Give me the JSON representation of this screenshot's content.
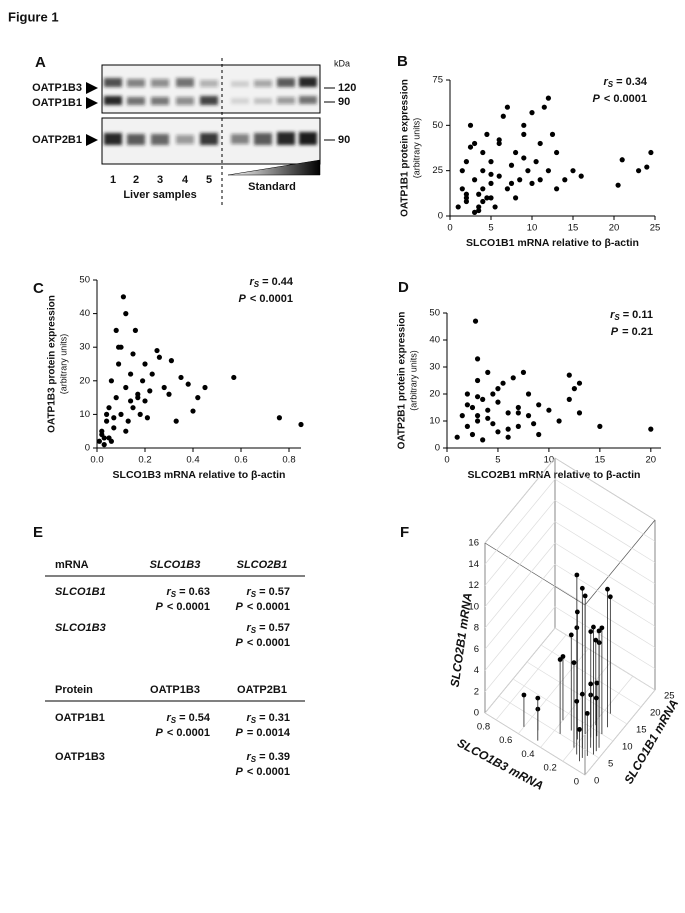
{
  "title": "Figure 1",
  "panel_labels": [
    "A",
    "B",
    "C",
    "D",
    "E",
    "F"
  ],
  "blot": {
    "kda_label": "kDa",
    "markers": [
      "120",
      "90",
      "90"
    ],
    "proteins": [
      "OATP1B3",
      "OATP1B1",
      "OATP2B1"
    ],
    "lanes": [
      "1",
      "2",
      "3",
      "4",
      "5"
    ],
    "groups": [
      "Liver samples",
      "Standard"
    ]
  },
  "chart_data": [
    {
      "type": "scatter",
      "ylabel": "OATP1B1 protein expression",
      "ylabel_sub": "(arbitrary units)",
      "xlabel": "SLCO1B1 mRNA relative to β-actin",
      "color": "#000000",
      "stat": {
        "r": "r",
        "sub": "S",
        "r_value": "= 0.34",
        "p": "P",
        "p_value": "<  0.0001"
      },
      "xlim": [
        0,
        25
      ],
      "xticks": [
        0,
        5,
        10,
        15,
        20,
        25
      ],
      "ylim": [
        0,
        75
      ],
      "yticks": [
        0,
        25,
        50,
        75
      ],
      "x": [
        1,
        1.5,
        2,
        2,
        2.5,
        3,
        3,
        3.5,
        3.5,
        4,
        4,
        4.5,
        4.5,
        5,
        5,
        5.5,
        6,
        6,
        6.5,
        7,
        7,
        7.5,
        8,
        8,
        8.5,
        9,
        9,
        9.5,
        10,
        10,
        10.5,
        11,
        11,
        12,
        12,
        12.5,
        13,
        13,
        14,
        15,
        16,
        20.5,
        21,
        23,
        24,
        24.5,
        2.5,
        3,
        4,
        5,
        6,
        1.5,
        2,
        3.5,
        7.5,
        9,
        11.5,
        5,
        4,
        2
      ],
      "values": [
        5,
        15,
        8,
        30,
        50,
        20,
        40,
        3,
        12,
        25,
        35,
        10,
        45,
        18,
        30,
        5,
        40,
        22,
        55,
        15,
        60,
        28,
        10,
        35,
        20,
        50,
        45,
        25,
        57,
        18,
        30,
        20,
        40,
        65,
        25,
        45,
        15,
        35,
        20,
        25,
        22,
        17,
        31,
        25,
        27,
        35,
        38,
        2,
        15,
        10,
        42,
        25,
        10,
        5,
        18,
        32,
        60,
        23,
        8,
        12
      ]
    },
    {
      "type": "scatter",
      "ylabel": "OATP1B3 protein expression",
      "ylabel_sub": "(arbitrary units)",
      "xlabel": "SLCO1B3 mRNA relative to β-actin",
      "color": "#000000",
      "stat": {
        "r": "r",
        "sub": "S",
        "r_value": "= 0.44",
        "p": "P",
        "p_value": "<  0.0001"
      },
      "xlim": [
        0,
        0.85
      ],
      "xticks": [
        {
          "value": 0,
          "label": "0.0"
        },
        0.2,
        0.4,
        0.6,
        0.8
      ],
      "ylim": [
        0,
        50
      ],
      "yticks": [
        0,
        10,
        20,
        30,
        40,
        50
      ],
      "x": [
        0.01,
        0.02,
        0.03,
        0.04,
        0.05,
        0.05,
        0.06,
        0.07,
        0.08,
        0.08,
        0.09,
        0.1,
        0.1,
        0.11,
        0.12,
        0.12,
        0.13,
        0.14,
        0.15,
        0.15,
        0.16,
        0.17,
        0.18,
        0.19,
        0.2,
        0.2,
        0.21,
        0.22,
        0.23,
        0.25,
        0.26,
        0.28,
        0.3,
        0.31,
        0.33,
        0.35,
        0.38,
        0.4,
        0.42,
        0.45,
        0.57,
        0.76,
        0.85,
        0.02,
        0.04,
        0.06,
        0.09,
        0.12,
        0.14,
        0.17,
        0.07,
        0.03
      ],
      "values": [
        2,
        5,
        1,
        8,
        3,
        12,
        20,
        6,
        35,
        15,
        25,
        10,
        30,
        45,
        18,
        5,
        8,
        22,
        12,
        28,
        35,
        15,
        10,
        20,
        14,
        25,
        9,
        17,
        22,
        29,
        27,
        18,
        16,
        26,
        8,
        21,
        19,
        11,
        15,
        18,
        21,
        9,
        7,
        4,
        10,
        2,
        30,
        40,
        14,
        16,
        9,
        3
      ]
    },
    {
      "type": "scatter",
      "ylabel": "OATP2B1 protein expression",
      "ylabel_sub": "(arbitrary units)",
      "xlabel": "SLCO2B1 mRNA relative to β-actin",
      "color": "#000000",
      "stat": {
        "r": "r",
        "sub": "S",
        "r_value": "= 0.11",
        "p": "P",
        "p_value": "=  0.21"
      },
      "xlim": [
        0,
        21
      ],
      "xticks": [
        0,
        5,
        10,
        15,
        20
      ],
      "ylim": [
        0,
        50
      ],
      "yticks": [
        0,
        10,
        20,
        30,
        40,
        50
      ],
      "x": [
        1,
        1.5,
        2,
        2,
        2.5,
        2.5,
        3,
        3,
        3,
        3.5,
        3.5,
        4,
        4,
        4.5,
        4.5,
        5,
        5,
        5.5,
        6,
        6,
        6.5,
        7,
        7,
        7.5,
        8,
        8,
        8.5,
        9,
        9,
        10,
        11,
        12,
        12,
        12.5,
        13,
        13,
        15,
        20,
        2,
        3,
        4,
        5,
        6,
        7,
        3,
        2.8
      ],
      "values": [
        4,
        12,
        20,
        8,
        15,
        5,
        25,
        10,
        33,
        18,
        3,
        14,
        28,
        9,
        20,
        17,
        6,
        24,
        13,
        4,
        26,
        15,
        8,
        28,
        12,
        20,
        9,
        16,
        5,
        14,
        10,
        27,
        18,
        22,
        13,
        24,
        8,
        7,
        16,
        19,
        11,
        22,
        7,
        13,
        12,
        47
      ]
    },
    {
      "type": "scatter3d",
      "xlabel": "SLCO1B1 mRNA",
      "ylabel": "SLCO1B3 mRNA",
      "zlabel": "SLCO2B1 mRNA",
      "color": "#000000",
      "xlim": [
        0,
        25
      ],
      "xticks": [
        0,
        5,
        10,
        15,
        20,
        25
      ],
      "ylim": [
        0,
        0.9
      ],
      "yticks": [
        0,
        0.2,
        0.4,
        0.6,
        0.8
      ],
      "zlim": [
        0,
        16
      ],
      "zticks": [
        0,
        2,
        4,
        6,
        8,
        10,
        12,
        14,
        16
      ],
      "x": [
        2,
        3,
        4,
        5,
        6,
        7,
        8,
        9,
        10,
        12,
        3,
        5,
        7,
        9,
        11,
        4,
        6,
        8,
        2,
        10,
        13,
        5,
        7,
        3,
        6,
        1,
        15,
        8
      ],
      "y": [
        0.1,
        0.15,
        0.2,
        0.05,
        0.1,
        0.25,
        0.15,
        0.3,
        0.2,
        0.1,
        0.5,
        0.35,
        0.05,
        0.12,
        0.18,
        0.08,
        0.22,
        0.4,
        0.6,
        0.1,
        0.2,
        0.15,
        0.3,
        0.1,
        0.05,
        0.45,
        0.15,
        0.2
      ],
      "values": [
        3,
        5,
        8,
        12,
        6,
        10,
        4,
        14,
        9,
        13,
        2,
        7,
        11,
        5,
        8,
        4,
        12,
        6,
        3,
        10,
        7,
        15,
        9,
        6,
        5,
        4,
        11,
        13
      ]
    }
  ],
  "table": {
    "r": "r",
    "sub": "S",
    "p": "P",
    "sections": [
      {
        "header": [
          "mRNA",
          "SLCO1B3",
          "SLCO2B1"
        ],
        "rows": [
          [
            "SLCO1B1",
            {
              "r_value": "= 0.63",
              "p_value": "< 0.0001"
            },
            {
              "r_value": "= 0.57",
              "p_value": "< 0.0001"
            }
          ],
          [
            "SLCO1B3",
            null,
            {
              "r_value": "= 0.57",
              "p_value": "< 0.0001"
            }
          ]
        ]
      },
      {
        "header": [
          "Protein",
          "OATP1B3",
          "OATP2B1"
        ],
        "rows": [
          [
            "OATP1B1",
            {
              "r_value": "= 0.54",
              "p_value": "< 0.0001"
            },
            {
              "r_value": "= 0.31",
              "p_value": "= 0.0014"
            }
          ],
          [
            "OATP1B3",
            null,
            {
              "r_value": "= 0.39",
              "p_value": "< 0.0001"
            }
          ]
        ]
      }
    ]
  }
}
